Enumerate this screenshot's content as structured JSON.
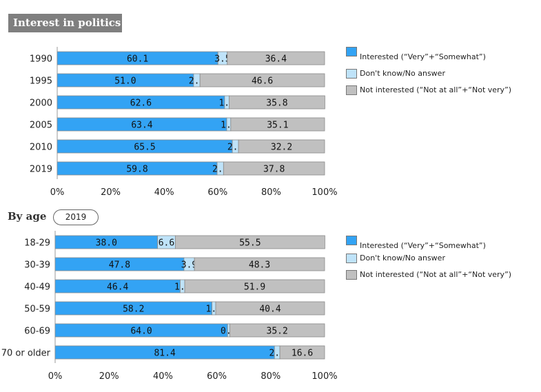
{
  "title": "Interest in politics",
  "age_section": {
    "label": "By age",
    "year_button": "2019"
  },
  "legend": [
    {
      "label": "Interested (“Very”+“Somewhat”)",
      "color": "#33a3f4"
    },
    {
      "label": "Don't know/No answer",
      "color": "#bfe3f9"
    },
    {
      "label": "Not interested (“Not at all”+“Not very”)",
      "color": "#c0c0c0"
    }
  ],
  "chart_data": [
    {
      "type": "bar",
      "orientation": "horizontal",
      "stacked": true,
      "title": "Interest in politics",
      "categories": [
        "1990",
        "1995",
        "2000",
        "2005",
        "2010",
        "2019"
      ],
      "series": [
        {
          "name": "Interested (“Very”+“Somewhat”)",
          "color": "#33a3f4",
          "values": [
            60.1,
            51.0,
            62.6,
            63.4,
            65.5,
            59.8
          ]
        },
        {
          "name": "Don't know/No answer",
          "color": "#bfe3f9",
          "values": [
            3.5,
            2.4,
            1.7,
            1.5,
            2.3,
            2.4
          ]
        },
        {
          "name": "Not interested (“Not at all”+“Not very”)",
          "color": "#c0c0c0",
          "values": [
            36.4,
            46.6,
            35.8,
            35.1,
            32.2,
            37.8
          ]
        }
      ],
      "xlim": [
        0,
        100
      ],
      "xticks": [
        "0%",
        "20%",
        "40%",
        "60%",
        "80%",
        "100%"
      ]
    },
    {
      "type": "bar",
      "orientation": "horizontal",
      "stacked": true,
      "title": "By age 2019",
      "categories": [
        "18-29",
        "30-39",
        "40-49",
        "50-59",
        "60-69",
        "70 or older"
      ],
      "series": [
        {
          "name": "Interested (“Very”+“Somewhat”)",
          "color": "#33a3f4",
          "values": [
            38.0,
            47.8,
            46.4,
            58.2,
            64.0,
            81.4
          ]
        },
        {
          "name": "Don't know/No answer",
          "color": "#bfe3f9",
          "values": [
            6.6,
            3.9,
            1.7,
            1.4,
            0.8,
            2.0
          ]
        },
        {
          "name": "Not interested (“Not at all”+“Not very”)",
          "color": "#c0c0c0",
          "values": [
            55.5,
            48.3,
            51.9,
            40.4,
            35.2,
            16.6
          ]
        }
      ],
      "xlim": [
        0,
        100
      ],
      "xticks": [
        "0%",
        "20%",
        "40%",
        "60%",
        "80%",
        "100%"
      ]
    }
  ]
}
